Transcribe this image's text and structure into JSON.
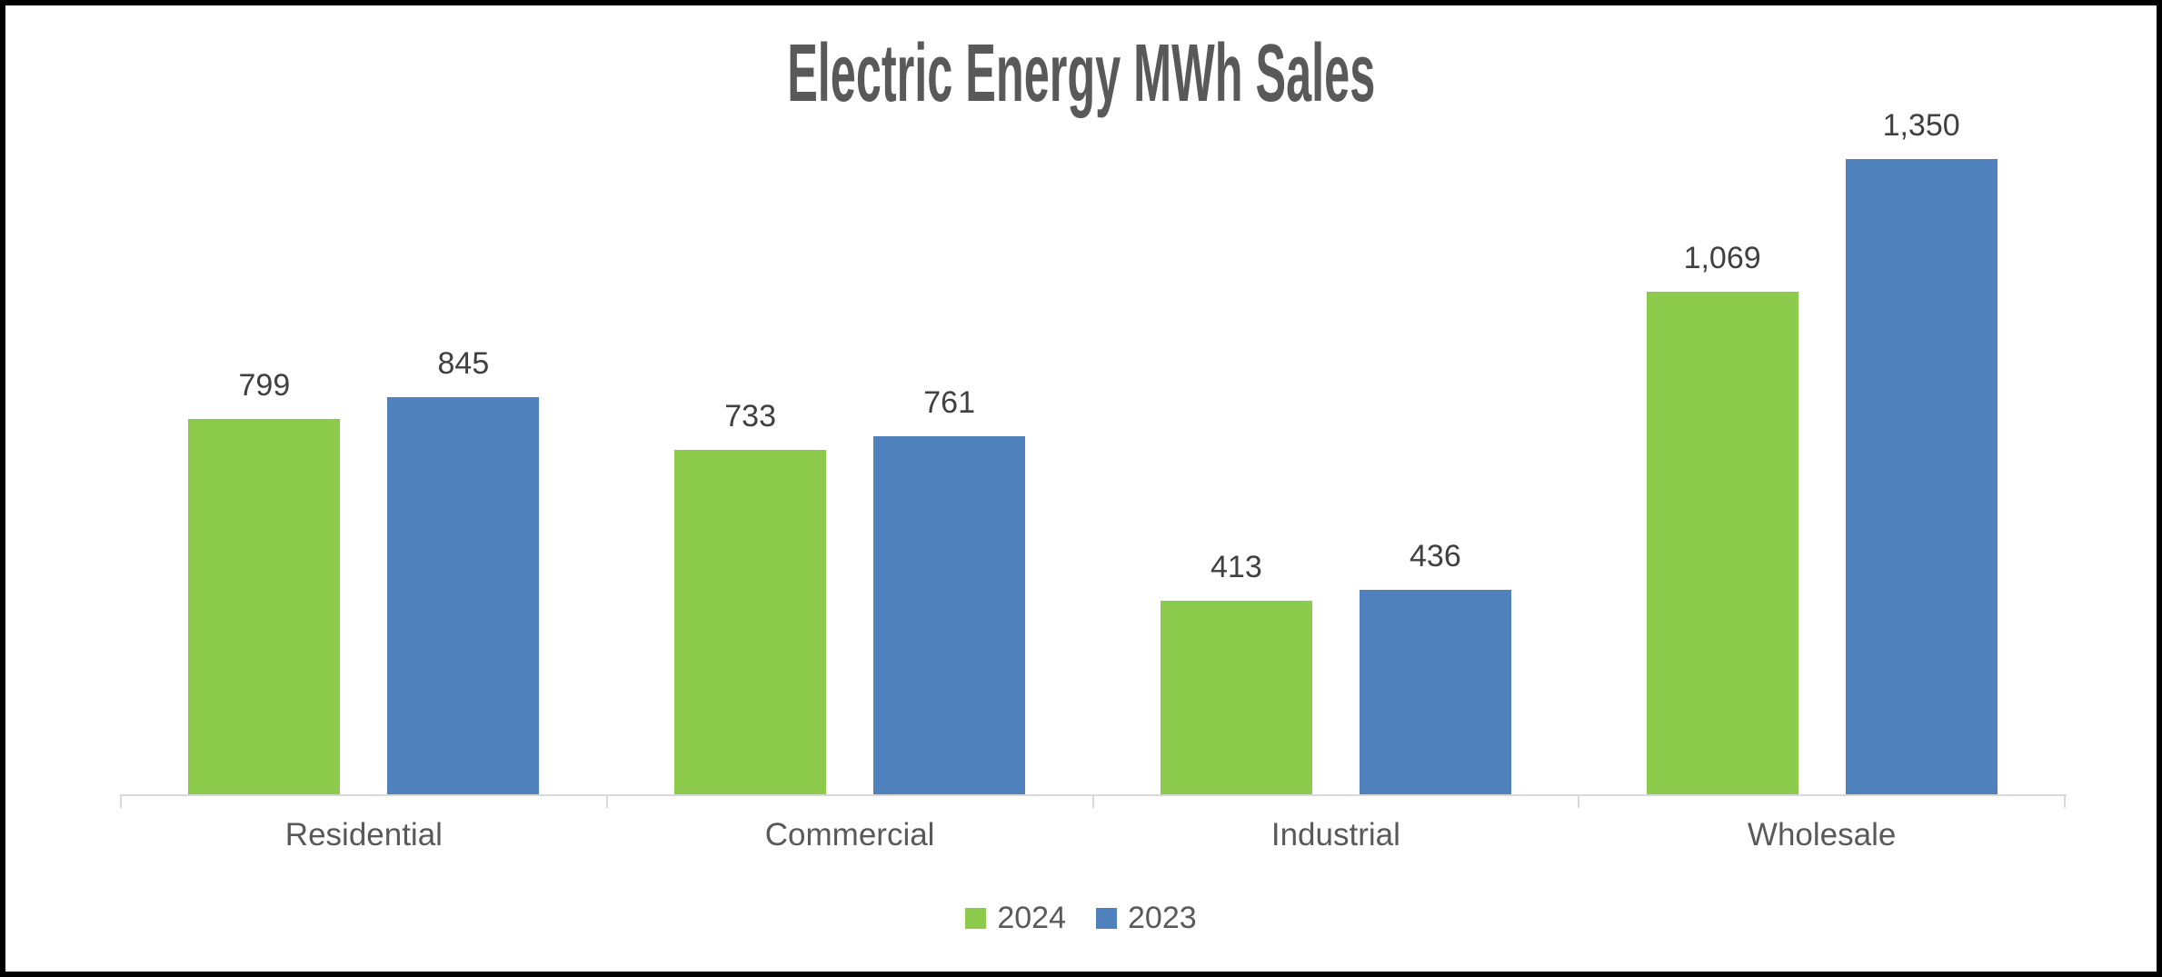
{
  "chart_data": {
    "type": "bar",
    "title": "Electric Energy MWh Sales",
    "categories": [
      "Residential",
      "Commercial",
      "Industrial",
      "Wholesale"
    ],
    "series": [
      {
        "name": "2024",
        "color": "#8DCB4C",
        "values": [
          799,
          733,
          413,
          1069
        ],
        "labels": [
          "799",
          "733",
          "413",
          "1,069"
        ]
      },
      {
        "name": "2023",
        "color": "#4F81BD",
        "values": [
          845,
          761,
          436,
          1350
        ],
        "labels": [
          "845",
          "761",
          "436",
          "1,350"
        ]
      }
    ],
    "xlabel": "",
    "ylabel": "",
    "ylim": [
      0,
      1465
    ],
    "grid": false,
    "data_labels": true,
    "legend_position": "bottom",
    "legend": [
      "2024",
      "2023"
    ]
  },
  "colors": {
    "series_2024": "#8DCB4C",
    "series_2023": "#4F81BD",
    "axis_line": "#D9D9D9",
    "title_text": "#595959",
    "data_label_text": "#404040",
    "category_text": "#595959",
    "frame_border": "#000000",
    "background": "#FFFFFF"
  }
}
